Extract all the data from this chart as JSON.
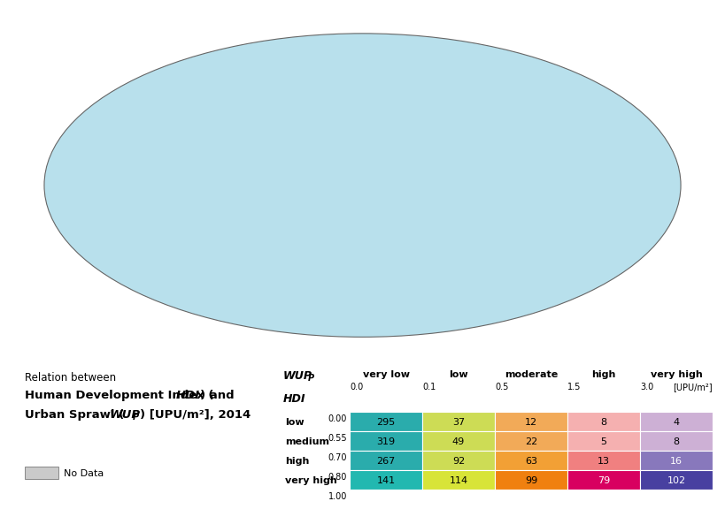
{
  "title_line1": "Relation between",
  "title_bold2a": "Human Development Index (",
  "title_bold2b": "HDI",
  "title_bold2c": ") and",
  "title_bold3a": "Urban Sprawl (",
  "title_bold3b": "WUP",
  "title_bold3c": "P",
  "title_bold3d": ") [UPU/m²], 2014",
  "no_data_label": "No Data",
  "col_headers": [
    "very low",
    "low",
    "moderate",
    "high",
    "very high"
  ],
  "col_units_label": "[UPU/m²]",
  "col_ranges": [
    "0.0",
    "0.1",
    "0.5",
    "1.5",
    "3.0"
  ],
  "row_labels": [
    "low",
    "medium",
    "high",
    "very high"
  ],
  "row_hdi_vals": [
    "0.00",
    "0.55",
    "0.70",
    "0.80",
    "1.00"
  ],
  "table_values": [
    [
      295,
      37,
      12,
      8,
      4
    ],
    [
      319,
      49,
      22,
      5,
      8
    ],
    [
      267,
      92,
      63,
      13,
      16
    ],
    [
      141,
      114,
      99,
      79,
      102
    ]
  ],
  "cell_colors": [
    [
      "#2AACAC",
      "#CDDC55",
      "#F2AA58",
      "#F5B0B0",
      "#CDB0D5"
    ],
    [
      "#2AACAC",
      "#CDDC55",
      "#F2AA58",
      "#F5B0B0",
      "#CDB0D5"
    ],
    [
      "#2AACAC",
      "#CDDC55",
      "#F2A035",
      "#F08080",
      "#8878BC"
    ],
    [
      "#22B8B0",
      "#D8E438",
      "#F08010",
      "#D80060",
      "#4840A0"
    ]
  ],
  "map_ocean_color": "#B8E0EC",
  "map_land_default": "#C8C8C8",
  "map_no_data_color": "#CACACA",
  "background_color": "#FFFFFF"
}
